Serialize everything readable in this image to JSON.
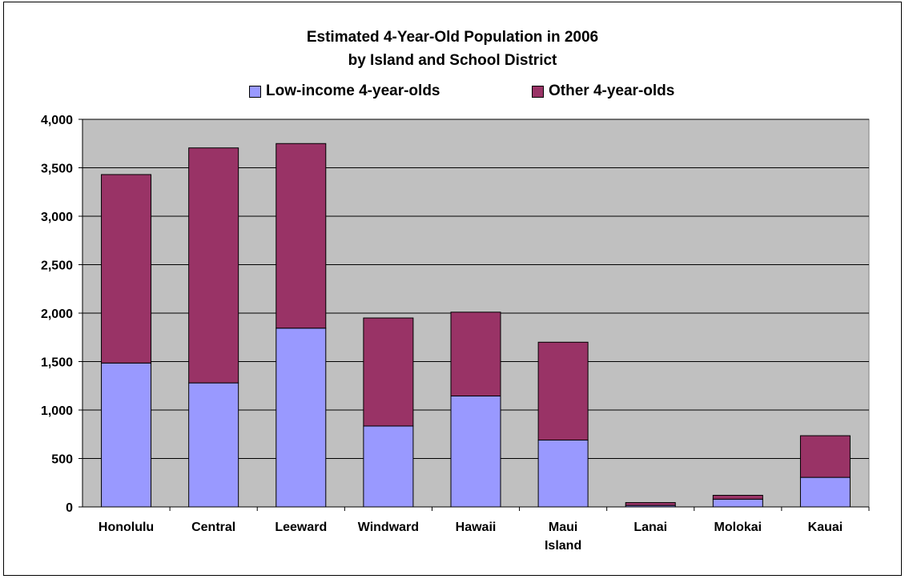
{
  "chart_data": {
    "type": "bar",
    "stacked": true,
    "title_lines": [
      "Estimated 4-Year-Old Population in 2006",
      "by Island and School District"
    ],
    "categories": [
      [
        "Honolulu"
      ],
      [
        "Central"
      ],
      [
        "Leeward"
      ],
      [
        "Windward"
      ],
      [
        "Hawaii"
      ],
      [
        "Maui",
        "Island"
      ],
      [
        "Lanai"
      ],
      [
        "Molokai"
      ],
      [
        "Kauai"
      ]
    ],
    "series": [
      {
        "name": "Low-income 4-year-olds",
        "color": "#9999ff",
        "values": [
          1485,
          1280,
          1845,
          835,
          1145,
          690,
          15,
          80,
          305
        ]
      },
      {
        "name": "Other 4-year-olds",
        "color": "#993366",
        "values": [
          1945,
          2425,
          1905,
          1115,
          865,
          1010,
          30,
          40,
          430
        ]
      }
    ],
    "ylim": [
      0,
      4000
    ],
    "yticks": [
      "0",
      "500",
      "1,000",
      "1,500",
      "2,000",
      "2,500",
      "3,000",
      "3,500",
      "4,000"
    ],
    "plot_background": "#c0c0c0",
    "grid": true,
    "legend_position": "top"
  }
}
